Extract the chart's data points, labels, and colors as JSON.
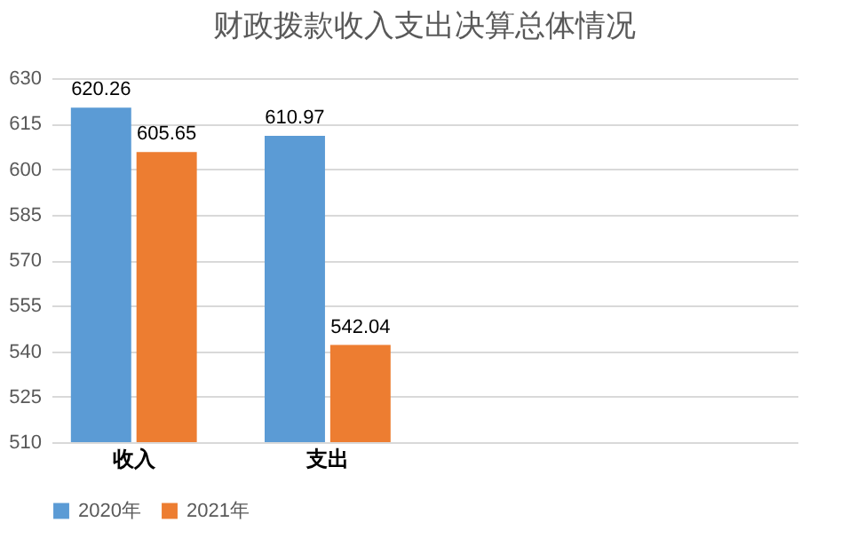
{
  "chart_data": {
    "type": "bar",
    "title": "财政拨款收入支出决算总体情况",
    "categories": [
      "收入",
      "支出",
      null,
      null
    ],
    "series": [
      {
        "name": "2020年",
        "color": "#5b9bd5",
        "values": [
          620.26,
          610.97,
          null,
          null
        ]
      },
      {
        "name": "2021年",
        "color": "#ed7d31",
        "values": [
          605.65,
          542.04,
          null,
          null
        ]
      }
    ],
    "ylim": [
      510,
      630
    ],
    "yticks": [
      510,
      525,
      540,
      555,
      570,
      585,
      600,
      615,
      630
    ],
    "grid": "y",
    "legend": "bottom",
    "data_labels": true
  }
}
